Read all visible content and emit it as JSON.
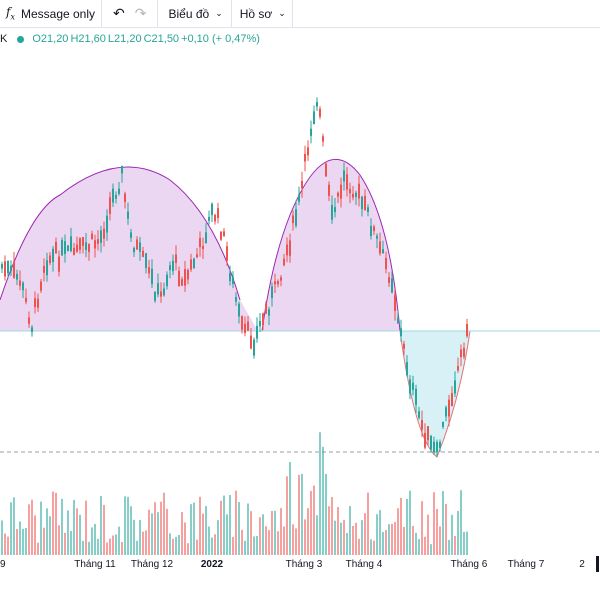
{
  "toolbar": {
    "fx_icon": "fx-icon",
    "message_filter": "Message only",
    "undo_icon": "undo-icon",
    "redo_icon": "redo-icon",
    "chart_menu": "Biểu đồ",
    "profile_menu": "Hồ sơ"
  },
  "legend": {
    "open": "O21,20",
    "high": "H21,60",
    "low": "L21,20",
    "close": "C21,50",
    "change": "+0,10 (+ 0,47%)",
    "up_color": "#26a69a"
  },
  "x_axis": {
    "left_cut": "9",
    "ticks": [
      "Tháng 11",
      "Tháng 12",
      "2022",
      "Tháng 3",
      "Tháng 4",
      "Tháng 6",
      "Tháng 7",
      "2"
    ]
  },
  "colors": {
    "up": "#26a69a",
    "down": "#ef5350",
    "pattern_fill": "#e7cdef",
    "pattern_stroke": "#9c27b0",
    "cup_fill": "#d3f0f6"
  },
  "chart_data": {
    "type": "candlestick",
    "title": "",
    "symbol": "",
    "last_bar": {
      "open": 21.2,
      "high": 21.6,
      "low": 21.2,
      "close": 21.5,
      "change": 0.1,
      "change_pct": 0.47
    },
    "x_ticks": [
      "Tháng 11",
      "Tháng 12",
      "2022",
      "Tháng 3",
      "Tháng 4",
      "Tháng 6",
      "Tháng 7"
    ],
    "patterns": [
      "double-top arcs",
      "cup"
    ],
    "price_scale_visible": false
  }
}
